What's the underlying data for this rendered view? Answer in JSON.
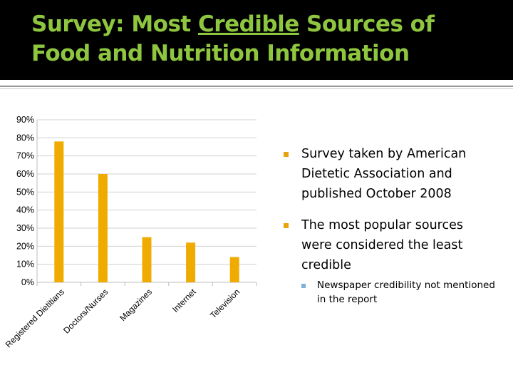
{
  "slide": {
    "title_part1": "Survey: Most ",
    "title_underlined": "Credible",
    "title_part2": " Sources of Food and Nutrition Information"
  },
  "bullets": [
    {
      "text": "Survey taken by American Dietetic Association and published October 2008"
    },
    {
      "text": "The most popular sources were considered the least credible"
    }
  ],
  "sub_bullets": [
    {
      "text": "Newspaper credibility not mentioned in the report"
    }
  ],
  "colors": {
    "title": "#8ec63f",
    "bar": "#f0ab00",
    "bullet_marker": "#e8a30c",
    "sub_bullet_marker": "#7fb0d8"
  },
  "chart_data": {
    "type": "bar",
    "categories": [
      "Registered Dietitians",
      "Doctors/Nurses",
      "Magazines",
      "Internet",
      "Television"
    ],
    "values": [
      78,
      60,
      25,
      22,
      14
    ],
    "y_tick_labels": [
      "0%",
      "10%",
      "20%",
      "30%",
      "40%",
      "50%",
      "60%",
      "70%",
      "80%",
      "90%"
    ],
    "ylim": [
      0,
      90
    ],
    "grid": true,
    "legend": "none"
  }
}
